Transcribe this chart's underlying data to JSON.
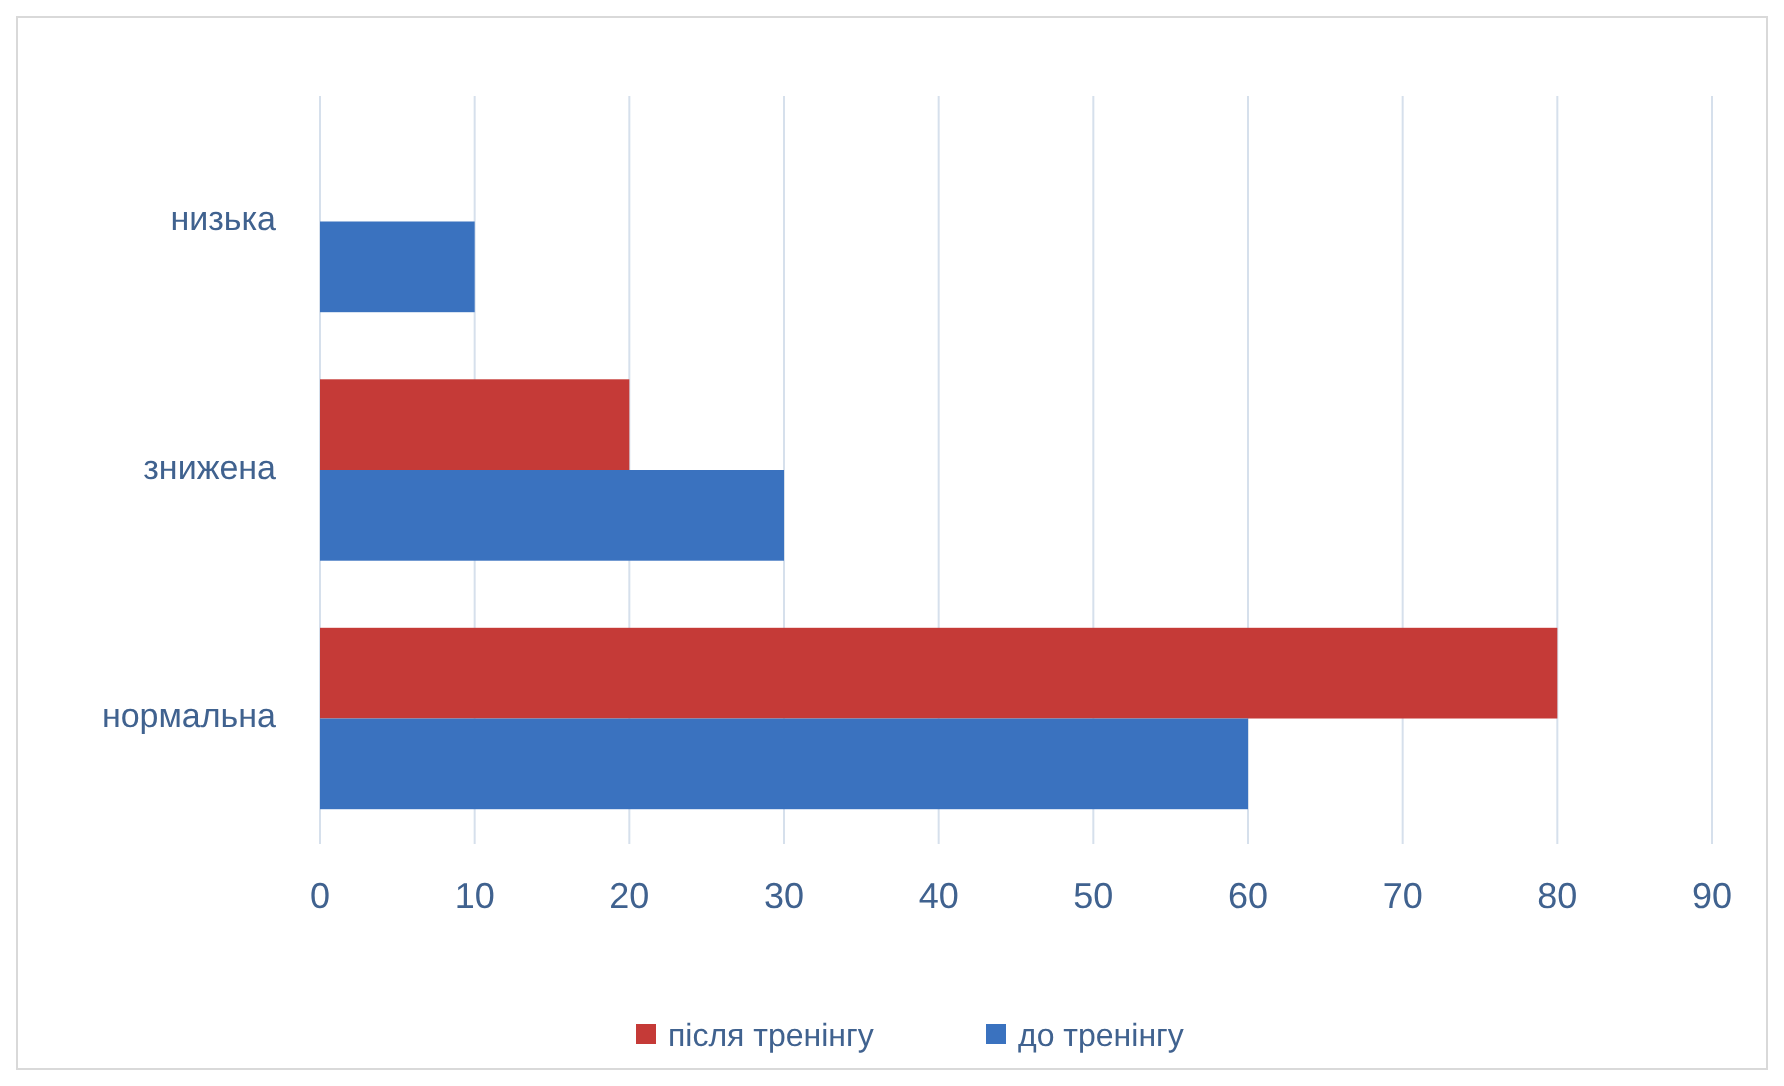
{
  "chart_data": {
    "type": "bar",
    "orientation": "horizontal",
    "categories": [
      "низька",
      "знижена",
      "нормальна"
    ],
    "series": [
      {
        "name": "після тренінгу",
        "color": "#c53a37",
        "values": [
          0,
          20,
          80
        ]
      },
      {
        "name": "до тренінгу",
        "color": "#3a72bf",
        "values": [
          10,
          30,
          60
        ]
      }
    ],
    "xlim": [
      0,
      90
    ],
    "xticks": [
      0,
      10,
      20,
      30,
      40,
      50,
      60,
      70,
      80,
      90
    ],
    "grid": "x",
    "legend": "bottom"
  }
}
